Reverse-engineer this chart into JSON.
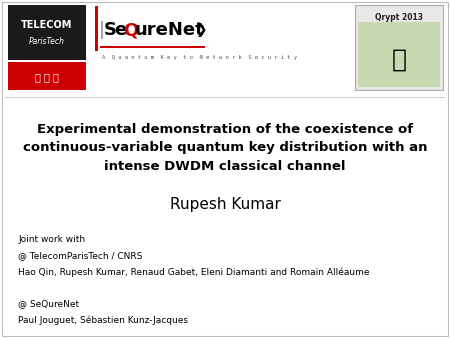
{
  "bg_color": "#ffffff",
  "title_line1": "Experimental demonstration of the coexistence of",
  "title_line2": "continuous-variable quantum key distribution with an",
  "title_line3": "intense DWDM classical channel",
  "author": "Rupesh Kumar",
  "joint_line1": "Joint work with",
  "joint_line2": "@ TelecomParisTech / CNRS",
  "joint_line3": "Hao Qin, Rupesh Kumar, Renaud Gabet, Eleni Diamanti and Romain Alléaume",
  "joint_line4": "@ SeQureNet",
  "joint_line5": "Paul Jouguet, Sébastien Kunz-Jacques",
  "title_fontsize": 9.5,
  "author_fontsize": 11,
  "body_fontsize": 6.5,
  "telecom_black": "#1a1a1a",
  "telecom_red": "#cc0000",
  "seq_red": "#cc0000",
  "border_color": "#bbbbbb"
}
